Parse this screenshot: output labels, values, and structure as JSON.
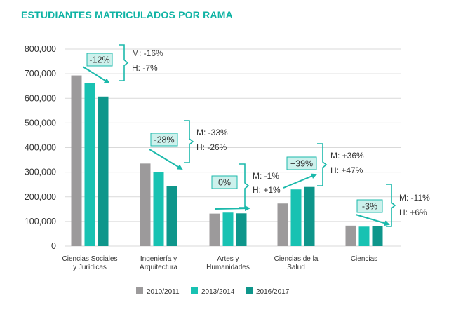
{
  "chart_data": {
    "type": "bar",
    "title": "ESTUDIANTES MATRICULADOS POR RAMA",
    "xlabel": "",
    "ylabel": "",
    "ylim": [
      0,
      800000
    ],
    "yticks": [
      0,
      100000,
      200000,
      300000,
      400000,
      500000,
      600000,
      700000,
      800000
    ],
    "ytick_labels": [
      "0",
      "100,000",
      "200,000",
      "300,000",
      "400,000",
      "500,000",
      "600,000",
      "700,000",
      "800,000"
    ],
    "grid": true,
    "legend_position": "bottom",
    "categories": [
      [
        "Ciencias Sociales",
        "y Jurídicas"
      ],
      [
        "Ingeniería y",
        "Arquitectura"
      ],
      [
        "Artes y",
        "Humanidades"
      ],
      [
        "Ciencias de la",
        "Salud"
      ],
      [
        "Ciencias"
      ]
    ],
    "series": [
      {
        "name": "2010/2011",
        "color": "#9c9a9b",
        "values": [
          693000,
          335000,
          132000,
          173000,
          83000
        ]
      },
      {
        "name": "2013/2014",
        "color": "#18c2b2",
        "values": [
          663000,
          301000,
          136000,
          230000,
          79000
        ]
      },
      {
        "name": "2016/2017",
        "color": "#0e968b",
        "values": [
          607000,
          242000,
          133000,
          240000,
          81000
        ]
      }
    ],
    "annotations": [
      {
        "change": "-12%",
        "men": "M: -16%",
        "women": "H: -7%"
      },
      {
        "change": "-28%",
        "men": "M: -33%",
        "women": "H: -26%"
      },
      {
        "change": "0%",
        "men": "M: -1%",
        "women": "H: +1%"
      },
      {
        "change": "+39%",
        "men": "M: +36%",
        "women": "H: +47%"
      },
      {
        "change": "-3%",
        "men": "M: -11%",
        "women": "H: +6%"
      }
    ]
  },
  "colors": {
    "title": "#0fb3a4",
    "accent": "#1bb9ab",
    "badge_fill": "#cdf1ec",
    "text": "#333333",
    "grid": "#d9d9d9"
  }
}
